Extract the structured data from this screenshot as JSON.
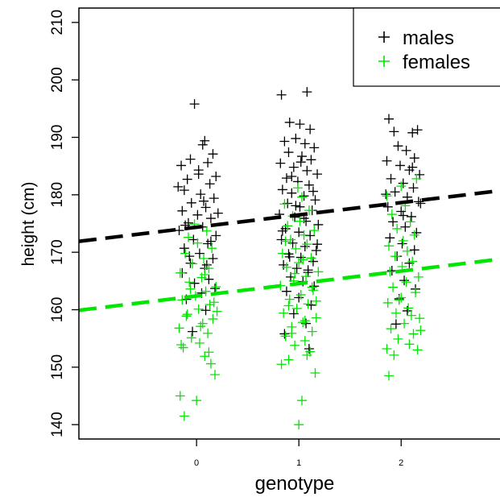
{
  "chart_data": {
    "type": "scatter",
    "title": "",
    "xlabel": "genotype",
    "ylabel": "height (cm)",
    "xlim": [
      -1.15,
      3.1
    ],
    "ylim": [
      137.5,
      212.5
    ],
    "x_ticks": [
      0,
      1,
      2
    ],
    "x_tick_labels": [
      "0",
      "1",
      "2"
    ],
    "y_ticks": [
      140,
      150,
      160,
      170,
      180,
      190,
      200,
      210
    ],
    "y_tick_labels": [
      "140",
      "150",
      "160",
      "170",
      "180",
      "190",
      "200",
      "210"
    ],
    "grid": false,
    "legend": {
      "position": "top-right",
      "entries": [
        "males",
        "females"
      ]
    },
    "series": [
      {
        "name": "males",
        "color": "#000000",
        "marker": "plus",
        "points": [
          [
            -0.02,
            195.8
          ],
          [
            0.08,
            189.4
          ],
          [
            0.06,
            188.7
          ],
          [
            0.16,
            187.1
          ],
          [
            -0.06,
            186.2
          ],
          [
            0.11,
            185.6
          ],
          [
            -0.15,
            185.1
          ],
          [
            0.02,
            184.3
          ],
          [
            0.19,
            183.2
          ],
          [
            -0.09,
            182.7
          ],
          [
            0.13,
            181.9
          ],
          [
            -0.12,
            180.8
          ],
          [
            0.04,
            180.1
          ],
          [
            0.17,
            179.4
          ],
          [
            -0.05,
            178.6
          ],
          [
            0.09,
            177.8
          ],
          [
            -0.14,
            177.2
          ],
          [
            0.01,
            176.5
          ],
          [
            0.14,
            175.9
          ],
          [
            -0.08,
            175.1
          ],
          [
            0.06,
            174.4
          ],
          [
            -0.17,
            173.8
          ],
          [
            0.19,
            172.9
          ],
          [
            -0.03,
            172.2
          ],
          [
            0.11,
            171.5
          ],
          [
            -0.12,
            170.7
          ],
          [
            0.03,
            169.8
          ],
          [
            0.16,
            168.9
          ],
          [
            -0.06,
            168.1
          ],
          [
            0.08,
            167.2
          ],
          [
            -0.14,
            166.4
          ],
          [
            0.12,
            165.3
          ],
          [
            -0.02,
            164.6
          ],
          [
            0.18,
            163.7
          ],
          [
            0.05,
            162.9
          ],
          [
            -0.1,
            161.8
          ],
          [
            0.09,
            159.9
          ],
          [
            -0.04,
            156.2
          ],
          [
            0.02,
            183.6
          ],
          [
            -0.18,
            181.4
          ],
          [
            0.07,
            178.9
          ],
          [
            0.21,
            176.8
          ],
          [
            -0.11,
            174.7
          ],
          [
            0.14,
            171.9
          ],
          [
            -0.07,
            169.3
          ],
          [
            0.1,
            167.8
          ],
          [
            0.83,
            197.4
          ],
          [
            1.08,
            197.9
          ],
          [
            0.91,
            192.6
          ],
          [
            1.01,
            192.3
          ],
          [
            1.11,
            191.4
          ],
          [
            0.86,
            189.3
          ],
          [
            0.97,
            189.8
          ],
          [
            1.06,
            188.9
          ],
          [
            1.15,
            188.2
          ],
          [
            0.9,
            187.4
          ],
          [
            1.03,
            186.7
          ],
          [
            1.12,
            186.1
          ],
          [
            0.82,
            185.5
          ],
          [
            0.95,
            184.8
          ],
          [
            1.08,
            184.2
          ],
          [
            1.18,
            183.6
          ],
          [
            0.88,
            182.9
          ],
          [
            0.99,
            182.3
          ],
          [
            1.1,
            181.7
          ],
          [
            0.84,
            180.9
          ],
          [
            0.93,
            180.3
          ],
          [
            1.05,
            179.8
          ],
          [
            1.16,
            179.1
          ],
          [
            0.89,
            178.5
          ],
          [
            1.01,
            177.9
          ],
          [
            1.13,
            177.3
          ],
          [
            0.81,
            176.6
          ],
          [
            0.96,
            176.1
          ],
          [
            1.07,
            175.4
          ],
          [
            1.19,
            174.8
          ],
          [
            0.87,
            174.1
          ],
          [
            1.0,
            173.5
          ],
          [
            1.11,
            172.9
          ],
          [
            0.83,
            172.2
          ],
          [
            0.94,
            171.6
          ],
          [
            1.06,
            171.0
          ],
          [
            1.17,
            170.3
          ],
          [
            0.9,
            169.7
          ],
          [
            1.02,
            169.1
          ],
          [
            1.14,
            168.4
          ],
          [
            0.85,
            167.8
          ],
          [
            0.98,
            167.2
          ],
          [
            1.09,
            166.5
          ],
          [
            0.92,
            165.7
          ],
          [
            1.04,
            164.9
          ],
          [
            1.15,
            164.1
          ],
          [
            0.88,
            163.2
          ],
          [
            1.0,
            162.1
          ],
          [
            1.12,
            160.8
          ],
          [
            0.95,
            159.3
          ],
          [
            1.07,
            157.6
          ],
          [
            0.86,
            155.8
          ],
          [
            1.1,
            153.2
          ],
          [
            1.02,
            185.7
          ],
          [
            0.93,
            183.2
          ],
          [
            1.14,
            180.6
          ],
          [
            0.97,
            178.1
          ],
          [
            1.05,
            175.9
          ],
          [
            0.84,
            173.7
          ],
          [
            1.18,
            171.4
          ],
          [
            0.91,
            169.2
          ],
          [
            1.09,
            166.9
          ],
          [
            1.88,
            193.2
          ],
          [
            1.93,
            191.0
          ],
          [
            2.11,
            190.8
          ],
          [
            2.16,
            191.3
          ],
          [
            1.97,
            188.5
          ],
          [
            2.05,
            187.7
          ],
          [
            2.13,
            186.4
          ],
          [
            1.86,
            185.9
          ],
          [
            1.99,
            185.1
          ],
          [
            2.08,
            184.3
          ],
          [
            2.18,
            183.5
          ],
          [
            1.9,
            182.8
          ],
          [
            2.02,
            182.0
          ],
          [
            2.12,
            181.2
          ],
          [
            1.94,
            180.5
          ],
          [
            2.06,
            179.6
          ],
          [
            2.17,
            178.8
          ],
          [
            1.87,
            177.9
          ],
          [
            2.0,
            177.1
          ],
          [
            2.1,
            176.2
          ],
          [
            1.92,
            175.3
          ],
          [
            2.04,
            174.4
          ],
          [
            2.15,
            173.4
          ],
          [
            1.89,
            172.5
          ],
          [
            2.01,
            171.5
          ],
          [
            2.13,
            170.4
          ],
          [
            1.96,
            169.3
          ],
          [
            2.08,
            168.1
          ],
          [
            1.91,
            166.8
          ],
          [
            2.03,
            165.1
          ],
          [
            2.14,
            163.6
          ],
          [
            1.98,
            161.9
          ],
          [
            2.06,
            159.8
          ],
          [
            1.95,
            157.5
          ],
          [
            2.11,
            184.8
          ],
          [
            1.85,
            180.1
          ],
          [
            2.19,
            178.5
          ],
          [
            2.02,
            176.4
          ]
        ]
      },
      {
        "name": "females",
        "color": "#00e600",
        "marker": "plus",
        "points": [
          [
            -0.16,
            145.0
          ],
          [
            0.0,
            144.2
          ],
          [
            -0.12,
            141.5
          ],
          [
            0.18,
            148.7
          ],
          [
            0.14,
            150.6
          ],
          [
            0.08,
            151.9
          ],
          [
            -0.13,
            153.4
          ],
          [
            0.03,
            154.2
          ],
          [
            -0.05,
            155.1
          ],
          [
            0.11,
            155.9
          ],
          [
            -0.17,
            156.8
          ],
          [
            0.06,
            157.6
          ],
          [
            0.16,
            158.4
          ],
          [
            -0.09,
            159.2
          ],
          [
            0.02,
            160.1
          ],
          [
            0.13,
            160.9
          ],
          [
            -0.14,
            161.7
          ],
          [
            -0.01,
            162.4
          ],
          [
            0.09,
            163.2
          ],
          [
            0.19,
            164.0
          ],
          [
            -0.07,
            164.8
          ],
          [
            0.05,
            165.6
          ],
          [
            -0.16,
            166.4
          ],
          [
            0.12,
            167.2
          ],
          [
            -0.04,
            168.0
          ],
          [
            0.07,
            168.9
          ],
          [
            -0.11,
            169.8
          ],
          [
            0.15,
            170.7
          ],
          [
            0.01,
            171.6
          ],
          [
            -0.08,
            172.6
          ],
          [
            0.1,
            173.7
          ],
          [
            -0.02,
            174.9
          ],
          [
            0.04,
            157.1
          ],
          [
            -0.1,
            158.9
          ],
          [
            0.17,
            161.3
          ],
          [
            -0.06,
            163.6
          ],
          [
            0.08,
            166.1
          ],
          [
            -0.15,
            153.9
          ],
          [
            0.12,
            152.6
          ],
          [
            0.2,
            159.7
          ],
          [
            1.0,
            140.0
          ],
          [
            1.03,
            144.2
          ],
          [
            0.83,
            150.5
          ],
          [
            0.9,
            151.3
          ],
          [
            1.16,
            149.0
          ],
          [
            1.11,
            152.7
          ],
          [
            0.96,
            153.8
          ],
          [
            1.06,
            154.6
          ],
          [
            0.87,
            155.4
          ],
          [
            1.13,
            156.2
          ],
          [
            0.93,
            157.0
          ],
          [
            1.04,
            157.8
          ],
          [
            1.17,
            158.6
          ],
          [
            0.85,
            159.4
          ],
          [
            0.98,
            160.2
          ],
          [
            1.09,
            161.0
          ],
          [
            0.91,
            161.8
          ],
          [
            1.02,
            162.6
          ],
          [
            1.14,
            163.4
          ],
          [
            0.82,
            164.2
          ],
          [
            0.95,
            165.0
          ],
          [
            1.07,
            165.8
          ],
          [
            1.19,
            166.6
          ],
          [
            0.88,
            167.4
          ],
          [
            1.0,
            168.2
          ],
          [
            1.12,
            169.0
          ],
          [
            0.84,
            169.8
          ],
          [
            0.97,
            170.6
          ],
          [
            1.08,
            171.4
          ],
          [
            0.92,
            172.2
          ],
          [
            1.05,
            173.0
          ],
          [
            1.15,
            173.8
          ],
          [
            0.89,
            174.6
          ],
          [
            1.01,
            175.4
          ],
          [
            0.94,
            176.3
          ],
          [
            1.1,
            177.3
          ],
          [
            0.86,
            178.4
          ],
          [
            1.03,
            179.6
          ],
          [
            0.99,
            181.2
          ],
          [
            1.06,
            158.1
          ],
          [
            0.9,
            160.7
          ],
          [
            1.13,
            163.9
          ],
          [
            0.96,
            166.3
          ],
          [
            1.04,
            168.7
          ],
          [
            0.87,
            171.9
          ],
          [
            1.17,
            161.5
          ],
          [
            0.93,
            155.9
          ],
          [
            1.08,
            152.1
          ],
          [
            1.88,
            148.5
          ],
          [
            1.86,
            153.2
          ],
          [
            1.93,
            152.1
          ],
          [
            2.16,
            153.0
          ],
          [
            2.08,
            154.0
          ],
          [
            1.97,
            154.9
          ],
          [
            2.12,
            155.8
          ],
          [
            1.9,
            156.7
          ],
          [
            2.03,
            157.6
          ],
          [
            2.18,
            158.5
          ],
          [
            1.95,
            159.4
          ],
          [
            2.07,
            160.3
          ],
          [
            1.87,
            161.2
          ],
          [
            2.0,
            162.1
          ],
          [
            2.14,
            163.0
          ],
          [
            1.92,
            163.9
          ],
          [
            2.05,
            164.8
          ],
          [
            2.17,
            165.7
          ],
          [
            1.89,
            166.6
          ],
          [
            2.01,
            167.5
          ],
          [
            2.11,
            168.4
          ],
          [
            1.94,
            169.3
          ],
          [
            2.06,
            170.2
          ],
          [
            1.88,
            171.1
          ],
          [
            2.02,
            172.0
          ],
          [
            2.13,
            173.0
          ],
          [
            1.96,
            174.1
          ],
          [
            2.09,
            175.3
          ],
          [
            1.91,
            176.6
          ],
          [
            2.04,
            178.1
          ],
          [
            1.86,
            179.8
          ],
          [
            2.0,
            181.5
          ],
          [
            2.15,
            182.8
          ],
          [
            2.1,
            159.0
          ],
          [
            1.98,
            161.7
          ],
          [
            2.19,
            156.4
          ]
        ]
      }
    ],
    "lines": [
      {
        "name": "males",
        "color": "#000000",
        "dash": "dashed",
        "x": [
          -1.15,
          3.1
        ],
        "y": [
          171.9,
          181.0
        ]
      },
      {
        "name": "females",
        "color": "#00e600",
        "dash": "dashed",
        "x": [
          -1.15,
          3.1
        ],
        "y": [
          159.9,
          169.1
        ]
      }
    ]
  }
}
